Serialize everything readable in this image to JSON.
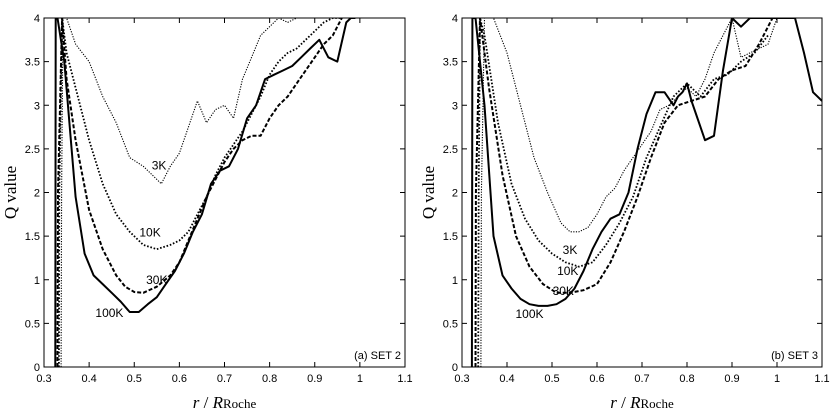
{
  "chart_data": [
    {
      "type": "line",
      "panel_label": "(a) SET 2",
      "xlabel": {
        "italic": "r",
        "sep": " / ",
        "R": "R",
        "sub": "Roche"
      },
      "ylabel": "Q value",
      "xlim": [
        0.3,
        1.1
      ],
      "ylim": [
        0,
        4
      ],
      "xticks": [
        "0.3",
        "0.4",
        "0.5",
        "0.6",
        "0.7",
        "0.8",
        "0.9",
        "1",
        "1.1"
      ],
      "yticks": [
        "0",
        "0.5",
        "1",
        "1.5",
        "2",
        "2.5",
        "3",
        "3.5",
        "4"
      ],
      "series": [
        {
          "name": "3K",
          "style": "dotted-thin",
          "x": [
            0.338,
            0.339,
            0.342,
            0.35,
            0.37,
            0.4,
            0.43,
            0.46,
            0.49,
            0.52,
            0.54,
            0.56,
            0.58,
            0.6,
            0.62,
            0.64,
            0.66,
            0.68,
            0.7,
            0.72,
            0.74,
            0.76,
            0.78,
            0.8,
            0.82,
            0.84,
            0.86
          ],
          "y": [
            0,
            2.0,
            4.0,
            4.0,
            3.7,
            3.5,
            3.1,
            2.8,
            2.4,
            2.3,
            2.2,
            2.1,
            2.3,
            2.45,
            2.75,
            3.05,
            2.8,
            2.95,
            3.0,
            2.85,
            3.3,
            3.55,
            3.8,
            3.9,
            4.0,
            3.95,
            4.0
          ]
        },
        {
          "name": "10K",
          "style": "dotted",
          "x": [
            0.333,
            0.334,
            0.34,
            0.35,
            0.37,
            0.4,
            0.43,
            0.46,
            0.49,
            0.52,
            0.55,
            0.58,
            0.6,
            0.62,
            0.64,
            0.66,
            0.68,
            0.7,
            0.72,
            0.74,
            0.76,
            0.78,
            0.8,
            0.82,
            0.84,
            0.86,
            0.88,
            0.9,
            0.92,
            0.94,
            0.96
          ],
          "y": [
            0,
            2.0,
            4.0,
            3.6,
            3.2,
            2.6,
            2.1,
            1.75,
            1.55,
            1.4,
            1.35,
            1.4,
            1.45,
            1.55,
            1.75,
            1.95,
            2.2,
            2.4,
            2.55,
            2.7,
            2.9,
            3.1,
            3.35,
            3.5,
            3.6,
            3.65,
            3.75,
            3.85,
            3.95,
            4.0,
            4.0
          ]
        },
        {
          "name": "30K",
          "style": "dashed",
          "x": [
            0.33,
            0.331,
            0.34,
            0.35,
            0.37,
            0.4,
            0.43,
            0.46,
            0.48,
            0.5,
            0.52,
            0.55,
            0.58,
            0.6,
            0.62,
            0.64,
            0.66,
            0.68,
            0.7,
            0.72,
            0.74,
            0.76,
            0.78,
            0.8,
            0.82,
            0.84,
            0.86,
            0.88,
            0.9,
            0.92,
            0.94,
            0.96
          ],
          "y": [
            0,
            2.0,
            4.0,
            3.3,
            2.6,
            1.8,
            1.35,
            1.05,
            0.92,
            0.86,
            0.85,
            0.92,
            1.05,
            1.2,
            1.45,
            1.7,
            1.95,
            2.15,
            2.35,
            2.5,
            2.6,
            2.65,
            2.65,
            2.85,
            3.0,
            3.1,
            3.25,
            3.4,
            3.55,
            3.7,
            3.8,
            4.0
          ]
        },
        {
          "name": "100K",
          "style": "solid",
          "x": [
            0.325,
            0.326,
            0.33,
            0.345,
            0.37,
            0.39,
            0.41,
            0.43,
            0.45,
            0.47,
            0.49,
            0.51,
            0.53,
            0.55,
            0.57,
            0.59,
            0.61,
            0.63,
            0.65,
            0.67,
            0.69,
            0.71,
            0.73,
            0.75,
            0.77,
            0.79,
            0.81,
            0.83,
            0.85,
            0.87,
            0.89,
            0.91,
            0.93,
            0.95,
            0.97,
            0.98,
            0.99
          ],
          "y": [
            0,
            4.0,
            4.0,
            3.5,
            1.95,
            1.3,
            1.05,
            0.95,
            0.85,
            0.75,
            0.63,
            0.63,
            0.72,
            0.8,
            0.95,
            1.1,
            1.3,
            1.55,
            1.75,
            2.1,
            2.25,
            2.3,
            2.5,
            2.85,
            3.0,
            3.3,
            3.35,
            3.4,
            3.45,
            3.55,
            3.65,
            3.75,
            3.55,
            3.5,
            3.95,
            4.0,
            4.0
          ]
        }
      ],
      "curve_labels": [
        {
          "text": "3K",
          "x": 0.555,
          "y": 2.31
        },
        {
          "text": "10K",
          "x": 0.535,
          "y": 1.54
        },
        {
          "text": "30K",
          "x": 0.55,
          "y": 1.0
        },
        {
          "text": "100K",
          "x": 0.445,
          "y": 0.62
        }
      ]
    },
    {
      "type": "line",
      "panel_label": "(b) SET 3",
      "xlabel": {
        "italic": "r",
        "sep": " / ",
        "R": "R",
        "sub": "Roche"
      },
      "ylabel": "Q value",
      "xlim": [
        0.3,
        1.1
      ],
      "ylim": [
        0,
        4
      ],
      "xticks": [
        "0.3",
        "0.4",
        "0.5",
        "0.6",
        "0.7",
        "0.8",
        "0.9",
        "1",
        "1.1"
      ],
      "yticks": [
        "0",
        "0.5",
        "1",
        "1.5",
        "2",
        "2.5",
        "3",
        "3.5",
        "4"
      ],
      "series": [
        {
          "name": "3K",
          "style": "dotted-thin",
          "x": [
            0.342,
            0.343,
            0.35,
            0.37,
            0.4,
            0.43,
            0.46,
            0.49,
            0.52,
            0.54,
            0.56,
            0.58,
            0.6,
            0.62,
            0.64,
            0.66,
            0.68,
            0.7,
            0.72,
            0.74,
            0.76,
            0.78,
            0.8,
            0.82,
            0.84,
            0.86,
            0.88,
            0.9,
            0.92,
            0.94,
            0.96,
            0.98,
            1.0
          ],
          "y": [
            0,
            2.0,
            4.0,
            4.0,
            3.6,
            3.0,
            2.4,
            2.0,
            1.65,
            1.55,
            1.55,
            1.6,
            1.75,
            1.95,
            2.05,
            2.25,
            2.4,
            2.55,
            2.7,
            2.95,
            3.0,
            3.1,
            3.2,
            3.1,
            3.3,
            3.6,
            3.8,
            4.0,
            3.55,
            3.6,
            3.65,
            3.7,
            4.0
          ]
        },
        {
          "name": "10K",
          "style": "dotted",
          "x": [
            0.336,
            0.337,
            0.34,
            0.35,
            0.38,
            0.41,
            0.44,
            0.47,
            0.5,
            0.53,
            0.56,
            0.59,
            0.62,
            0.65,
            0.68,
            0.71,
            0.74,
            0.77,
            0.8,
            0.83,
            0.86,
            0.89,
            0.92,
            0.95,
            0.98
          ],
          "y": [
            0,
            2.0,
            4.0,
            3.8,
            2.8,
            2.1,
            1.7,
            1.45,
            1.3,
            1.2,
            1.15,
            1.2,
            1.4,
            1.65,
            1.95,
            2.4,
            2.75,
            3.1,
            3.25,
            3.1,
            3.3,
            3.35,
            3.5,
            3.6,
            3.8
          ]
        },
        {
          "name": "30K",
          "style": "dashed",
          "x": [
            0.33,
            0.331,
            0.34,
            0.36,
            0.39,
            0.42,
            0.45,
            0.48,
            0.51,
            0.54,
            0.57,
            0.6,
            0.63,
            0.66,
            0.69,
            0.72,
            0.75,
            0.78,
            0.81,
            0.84,
            0.87,
            0.9,
            0.93,
            0.96,
            0.99
          ],
          "y": [
            0,
            2.0,
            4.0,
            3.2,
            2.2,
            1.5,
            1.15,
            0.95,
            0.85,
            0.85,
            0.88,
            0.95,
            1.2,
            1.55,
            1.95,
            2.4,
            2.8,
            3.0,
            3.05,
            3.1,
            3.3,
            3.4,
            3.45,
            3.7,
            4.0
          ]
        },
        {
          "name": "100K",
          "style": "solid",
          "x": [
            0.322,
            0.323,
            0.33,
            0.35,
            0.37,
            0.39,
            0.41,
            0.43,
            0.45,
            0.47,
            0.49,
            0.51,
            0.53,
            0.55,
            0.57,
            0.59,
            0.61,
            0.63,
            0.65,
            0.67,
            0.69,
            0.71,
            0.73,
            0.75,
            0.77,
            0.78,
            0.79,
            0.8,
            0.81,
            0.82,
            0.83,
            0.84,
            0.86,
            0.88,
            0.9,
            0.92,
            0.94,
            1.04,
            1.06,
            1.08,
            1.1
          ],
          "y": [
            0,
            4.0,
            4.0,
            3.0,
            1.5,
            1.05,
            0.9,
            0.78,
            0.72,
            0.7,
            0.7,
            0.72,
            0.78,
            0.9,
            1.1,
            1.35,
            1.55,
            1.7,
            1.75,
            2.0,
            2.5,
            2.9,
            3.15,
            3.15,
            3.0,
            3.1,
            3.15,
            3.25,
            3.05,
            2.9,
            2.75,
            2.6,
            2.65,
            3.4,
            4.0,
            3.9,
            4.0,
            4.0,
            3.6,
            3.15,
            3.05
          ]
        }
      ],
      "curve_labels": [
        {
          "text": "3K",
          "x": 0.54,
          "y": 1.34
        },
        {
          "text": "10K",
          "x": 0.535,
          "y": 1.1
        },
        {
          "text": "30K",
          "x": 0.525,
          "y": 0.87
        },
        {
          "text": "100K",
          "x": 0.45,
          "y": 0.61
        }
      ]
    }
  ]
}
